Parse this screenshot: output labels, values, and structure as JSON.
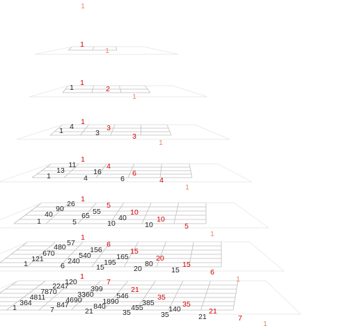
{
  "colors": {
    "background": "#ffffff",
    "black_number": "#222222",
    "red_number": "#d40000",
    "salmon_number": "#e8866b",
    "grid_line": "#bdbdbd",
    "grid_line_faint": "#e4e4e4"
  },
  "layers": [
    {
      "n": 0,
      "numbers": [
        {
          "text": "1",
          "color": "salmon"
        }
      ]
    },
    {
      "n": 1,
      "numbers": [
        {
          "text": "1",
          "color": "red"
        },
        {
          "text": "1",
          "color": "salmon"
        }
      ]
    },
    {
      "n": 2,
      "numbers": [
        {
          "text": "1",
          "color": "black"
        },
        {
          "text": "1",
          "color": "red"
        },
        {
          "text": "2",
          "color": "red"
        },
        {
          "text": "1",
          "color": "salmon"
        }
      ]
    },
    {
      "n": 3,
      "numbers": [
        {
          "text": "1",
          "color": "black"
        },
        {
          "text": "4",
          "color": "black"
        },
        {
          "text": "1",
          "color": "red"
        },
        {
          "text": "3",
          "color": "black"
        },
        {
          "text": "3",
          "color": "red"
        },
        {
          "text": "3",
          "color": "red"
        },
        {
          "text": "1",
          "color": "salmon"
        }
      ]
    },
    {
      "n": 4,
      "numbers": [
        {
          "text": "11",
          "color": "black"
        },
        {
          "text": "1",
          "color": "red"
        },
        {
          "text": "13",
          "color": "black"
        },
        {
          "text": "4",
          "color": "red"
        },
        {
          "text": "1",
          "color": "black"
        },
        {
          "text": "16",
          "color": "black"
        },
        {
          "text": "6",
          "color": "red"
        },
        {
          "text": "4",
          "color": "black"
        },
        {
          "text": "6",
          "color": "black"
        },
        {
          "text": "4",
          "color": "red"
        },
        {
          "text": "1",
          "color": "salmon"
        }
      ]
    },
    {
      "n": 5,
      "numbers": [
        {
          "text": "26",
          "color": "black"
        },
        {
          "text": "1",
          "color": "red"
        },
        {
          "text": "90",
          "color": "black"
        },
        {
          "text": "5",
          "color": "red"
        },
        {
          "text": "55",
          "color": "black"
        },
        {
          "text": "40",
          "color": "black"
        },
        {
          "text": "10",
          "color": "red"
        },
        {
          "text": "65",
          "color": "black"
        },
        {
          "text": "1",
          "color": "black"
        },
        {
          "text": "40",
          "color": "black"
        },
        {
          "text": "10",
          "color": "red"
        },
        {
          "text": "5",
          "color": "black"
        },
        {
          "text": "10",
          "color": "black"
        },
        {
          "text": "10",
          "color": "black"
        },
        {
          "text": "5",
          "color": "red"
        },
        {
          "text": "1",
          "color": "salmon"
        }
      ]
    },
    {
      "n": 6,
      "numbers": [
        {
          "text": "57",
          "color": "black"
        },
        {
          "text": "1",
          "color": "red"
        },
        {
          "text": "480",
          "color": "black"
        },
        {
          "text": "6",
          "color": "red"
        },
        {
          "text": "156",
          "color": "black"
        },
        {
          "text": "670",
          "color": "black"
        },
        {
          "text": "540",
          "color": "black"
        },
        {
          "text": "15",
          "color": "red"
        },
        {
          "text": "165",
          "color": "black"
        },
        {
          "text": "121",
          "color": "black"
        },
        {
          "text": "240",
          "color": "black"
        },
        {
          "text": "195",
          "color": "black"
        },
        {
          "text": "80",
          "color": "black"
        },
        {
          "text": "20",
          "color": "red"
        },
        {
          "text": "1",
          "color": "black"
        },
        {
          "text": "6",
          "color": "black"
        },
        {
          "text": "15",
          "color": "black"
        },
        {
          "text": "20",
          "color": "black"
        },
        {
          "text": "15",
          "color": "black"
        },
        {
          "text": "15",
          "color": "red"
        },
        {
          "text": "6",
          "color": "red"
        },
        {
          "text": "1",
          "color": "salmon"
        }
      ]
    },
    {
      "n": 7,
      "numbers": [
        {
          "text": "120",
          "color": "black"
        },
        {
          "text": "1",
          "color": "red"
        },
        {
          "text": "7",
          "color": "red"
        },
        {
          "text": "2247",
          "color": "black"
        },
        {
          "text": "399",
          "color": "black"
        },
        {
          "text": "21",
          "color": "red"
        },
        {
          "text": "7870",
          "color": "black"
        },
        {
          "text": "3360",
          "color": "black"
        },
        {
          "text": "546",
          "color": "black"
        },
        {
          "text": "35",
          "color": "red"
        },
        {
          "text": "4811",
          "color": "black"
        },
        {
          "text": "4690",
          "color": "black"
        },
        {
          "text": "1890",
          "color": "black"
        },
        {
          "text": "385",
          "color": "black"
        },
        {
          "text": "35",
          "color": "red"
        },
        {
          "text": "364",
          "color": "black"
        },
        {
          "text": "847",
          "color": "black"
        },
        {
          "text": "840",
          "color": "black"
        },
        {
          "text": "455",
          "color": "black"
        },
        {
          "text": "140",
          "color": "black"
        },
        {
          "text": "21",
          "color": "red"
        },
        {
          "text": "1",
          "color": "black"
        },
        {
          "text": "7",
          "color": "black"
        },
        {
          "text": "21",
          "color": "black"
        },
        {
          "text": "35",
          "color": "black"
        },
        {
          "text": "35",
          "color": "black"
        },
        {
          "text": "21",
          "color": "black"
        },
        {
          "text": "7",
          "color": "red"
        },
        {
          "text": "1",
          "color": "salmon"
        }
      ]
    }
  ]
}
